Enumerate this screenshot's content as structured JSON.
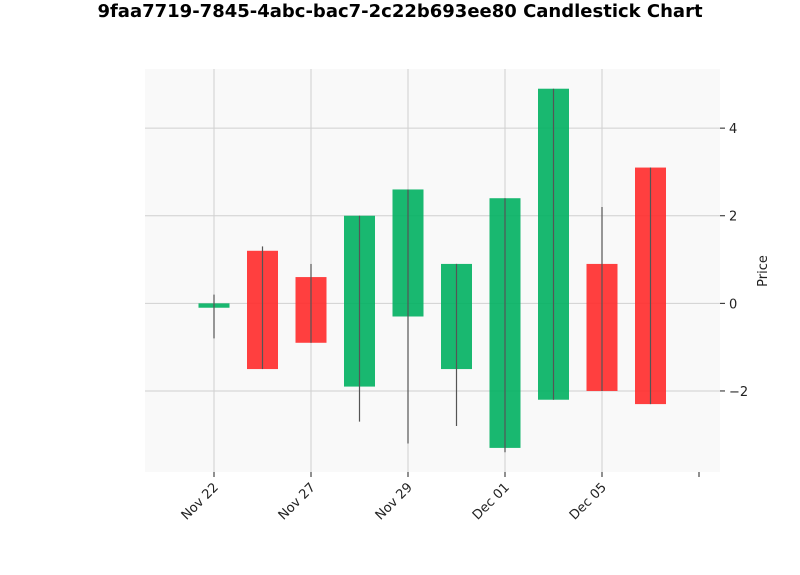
{
  "chart_data": {
    "type": "candlestick",
    "title": "9faa7719-7845-4abc-bac7-2c22b693ee80 Candlestick Chart",
    "xlabel": "",
    "ylabel": "Price",
    "y_axis_position": "right",
    "ylim": [
      -3.85,
      5.35
    ],
    "yticks": [
      -2,
      0,
      2,
      4
    ],
    "ytick_labels": [
      "−2",
      "0",
      "2",
      "4"
    ],
    "xtick_labels": [
      "Nov 22",
      "Nov 27",
      "Nov 29",
      "Dec 01",
      "Dec 05",
      ""
    ],
    "grid": true,
    "colors": {
      "up": "#00b060",
      "down": "#ff2a2a",
      "wick": "#555555",
      "panel": "#f9f9f9",
      "grid": "#d0d0d0"
    },
    "candles": [
      {
        "open": -0.1,
        "close": 0.0,
        "high": 0.2,
        "low": -0.8
      },
      {
        "open": 1.2,
        "close": -1.5,
        "high": 1.3,
        "low": -1.5
      },
      {
        "open": 0.6,
        "close": -0.9,
        "high": 0.9,
        "low": -0.9
      },
      {
        "open": -1.9,
        "close": 2.0,
        "high": 2.0,
        "low": -2.7
      },
      {
        "open": -0.3,
        "close": 2.6,
        "high": 2.6,
        "low": -3.2
      },
      {
        "open": -1.5,
        "close": 0.9,
        "high": 0.9,
        "low": -2.8
      },
      {
        "open": -3.3,
        "close": 2.4,
        "high": 2.4,
        "low": -3.4
      },
      {
        "open": -2.2,
        "close": 4.9,
        "high": 4.9,
        "low": -2.2
      },
      {
        "open": 0.9,
        "close": -2.0,
        "high": 2.2,
        "low": -2.0
      },
      {
        "open": 3.1,
        "close": -2.3,
        "high": 3.1,
        "low": -2.3
      }
    ]
  }
}
